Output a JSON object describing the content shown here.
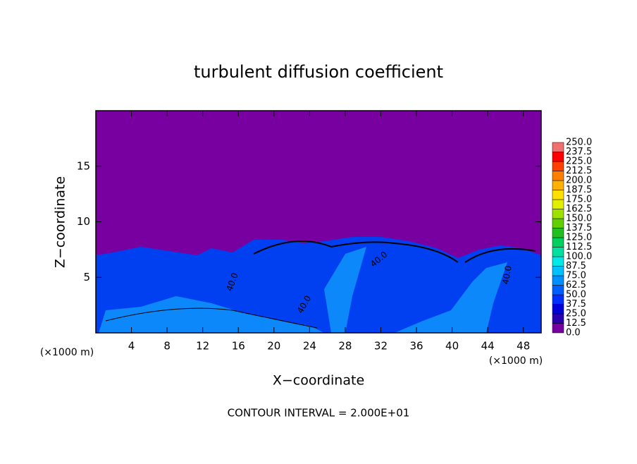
{
  "chart_data": {
    "type": "contour",
    "title": "turbulent diffusion coefficient",
    "x_label": "X−coordinate",
    "y_label": "Z−coordinate",
    "x_unit_left": "(×1000 m)",
    "x_unit_right": "(×1000 m)",
    "footer": "CONTOUR INTERVAL = 2.000E+01",
    "xlim": [
      0,
      50
    ],
    "xticks": [
      4,
      8,
      12,
      16,
      20,
      24,
      28,
      32,
      36,
      40,
      44,
      48
    ],
    "ylim": [
      0,
      20
    ],
    "yticks": [
      5,
      10,
      15
    ],
    "contour_labels": [
      "40.0",
      "40.0",
      "40.0",
      "40.0"
    ],
    "colorbar_ticks": [
      {
        "value": 0,
        "label": "0.0"
      },
      {
        "value": 12.5,
        "label": "12.5"
      },
      {
        "value": 25,
        "label": "25.0"
      },
      {
        "value": 37.5,
        "label": "37.5"
      },
      {
        "value": 50,
        "label": "50.0"
      },
      {
        "value": 62.5,
        "label": "62.5"
      },
      {
        "value": 75,
        "label": "75.0"
      },
      {
        "value": 87.5,
        "label": "87.5"
      },
      {
        "value": 100,
        "label": "100.0"
      },
      {
        "value": 112.5,
        "label": "112.5"
      },
      {
        "value": 125,
        "label": "125.0"
      },
      {
        "value": 137.5,
        "label": "137.5"
      },
      {
        "value": 150,
        "label": "150.0"
      },
      {
        "value": 162.5,
        "label": "162.5"
      },
      {
        "value": 175,
        "label": "175.0"
      },
      {
        "value": 187.5,
        "label": "187.5"
      },
      {
        "value": 200,
        "label": "200.0"
      },
      {
        "value": 212.5,
        "label": "212.5"
      },
      {
        "value": 225,
        "label": "225.0"
      },
      {
        "value": 237.5,
        "label": "237.5"
      },
      {
        "value": 250,
        "label": "250.0"
      }
    ],
    "colorbar_colors": [
      "#7800a0",
      "#2800b0",
      "#0000d8",
      "#0030ff",
      "#0060ff",
      "#0090ff",
      "#00c0ff",
      "#00e8e8",
      "#00e0a0",
      "#00d060",
      "#20c020",
      "#60d000",
      "#a0e000",
      "#e0f000",
      "#ffe000",
      "#ffb000",
      "#ff8000",
      "#ff4000",
      "#ff0000",
      "#f07070"
    ]
  }
}
